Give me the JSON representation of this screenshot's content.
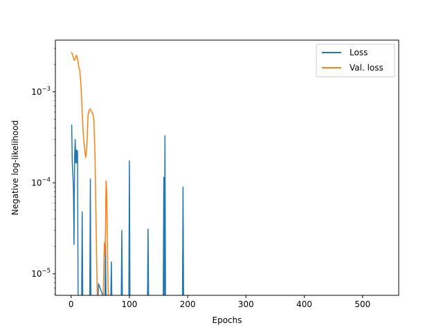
{
  "chart_data": {
    "type": "line",
    "title": "",
    "xlabel": "Epochs",
    "ylabel": "Negative log-likelihood",
    "xlim": [
      -27,
      562
    ],
    "ylim": [
      5.8e-06,
      0.0037
    ],
    "yscale": "log",
    "grid": false,
    "legend_position": "top-right",
    "x_ticks": [
      {
        "value": 0,
        "label": "0"
      },
      {
        "value": 100,
        "label": "100"
      },
      {
        "value": 200,
        "label": "200"
      },
      {
        "value": 300,
        "label": "300"
      },
      {
        "value": 400,
        "label": "400"
      },
      {
        "value": 500,
        "label": "500"
      }
    ],
    "y_ticks": [
      {
        "value": 1e-05,
        "base": "10",
        "exp": "−5"
      },
      {
        "value": 0.0001,
        "base": "10",
        "exp": "−4"
      },
      {
        "value": 0.001,
        "base": "10",
        "exp": "−3"
      }
    ],
    "series": [
      {
        "name": "Loss",
        "color": "#1f77b4",
        "x": [
          1,
          2,
          3,
          4,
          5,
          6,
          7,
          8,
          9,
          10,
          11,
          12,
          13,
          18,
          19,
          20,
          32,
          33,
          34,
          46,
          47,
          58,
          59,
          60,
          68,
          69,
          70,
          86,
          87,
          88,
          99,
          100,
          101,
          131,
          132,
          133,
          158,
          159,
          160,
          161,
          162,
          163,
          191,
          192,
          193
        ],
        "y": [
          0.00043,
          0.000165,
          0.000125,
          8.5e-05,
          2.1e-05,
          0.00019,
          0.0003,
          0.000165,
          0.00023,
          0.000165,
          0.000225,
          5e-06,
          null,
          5e-06,
          4.8e-05,
          5e-06,
          5e-06,
          0.00011,
          5e-06,
          5e-06,
          7.8e-06,
          5e-06,
          2.1e-05,
          5e-06,
          5e-06,
          1.35e-05,
          5e-06,
          5e-06,
          3e-05,
          5e-06,
          5e-06,
          0.000175,
          5e-06,
          5e-06,
          3.1e-05,
          5e-06,
          5e-06,
          0.000115,
          5e-06,
          0.00033,
          5e-06,
          null,
          5e-06,
          9e-05,
          5e-06
        ]
      },
      {
        "name": "Val. loss",
        "color": "#ff7f0e",
        "x": [
          1,
          3,
          5,
          7,
          9,
          11,
          13,
          15,
          17,
          19,
          21,
          23,
          25,
          27,
          29,
          31,
          33,
          35,
          37,
          39,
          41,
          43,
          45,
          47,
          52,
          55,
          57,
          58,
          59,
          60,
          61,
          62,
          63,
          64
        ],
        "y": [
          0.0027,
          0.0025,
          0.00222,
          0.00228,
          0.00252,
          0.00232,
          0.0019,
          0.0017,
          0.00115,
          0.0006,
          0.00033,
          0.00024,
          0.00019,
          0.00025,
          0.00055,
          0.00063,
          0.00065,
          0.0006,
          0.00058,
          0.0005,
          0.0002,
          3e-05,
          5e-06,
          null,
          5e-06,
          5e-06,
          2.2e-05,
          1.6e-05,
          3e-05,
          0.000105,
          8e-05,
          2.8e-05,
          1e-05,
          5e-06
        ]
      }
    ]
  }
}
